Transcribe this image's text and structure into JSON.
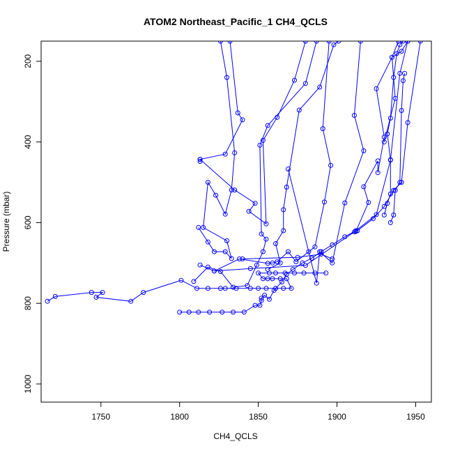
{
  "chart_data": {
    "type": "line",
    "title": "ATOM2 Northeast_Pacific_1 CH4_QCLS",
    "xlabel": "CH4_QCLS",
    "ylabel": "Pressure (mbar)",
    "xlim": [
      1712,
      1960
    ],
    "ylim": [
      1045,
      150
    ],
    "y_reversed": true,
    "x_ticks": [
      1750,
      1800,
      1850,
      1900,
      1950
    ],
    "y_ticks": [
      200,
      400,
      600,
      800,
      1000
    ],
    "grid": false,
    "legend": "none",
    "marker": "open-circle",
    "color": "#0000ff",
    "series": [
      {
        "values": [
          [
            1716,
            795
          ],
          [
            1721,
            783
          ],
          [
            1744,
            773
          ],
          [
            1751,
            773
          ],
          [
            1747,
            785
          ],
          [
            1769,
            795
          ],
          [
            1777,
            773
          ],
          [
            1801,
            743
          ],
          [
            1811,
            763
          ],
          [
            1818,
            763
          ],
          [
            1826,
            763
          ],
          [
            1829,
            763
          ],
          [
            1836,
            763
          ],
          [
            1845,
            763
          ],
          [
            1850,
            763
          ],
          [
            1855,
            763
          ],
          [
            1861,
            763
          ],
          [
            1866,
            763
          ],
          [
            1871,
            763
          ],
          [
            1868,
            739
          ],
          [
            1864,
            739
          ],
          [
            1859,
            739
          ],
          [
            1856,
            739
          ],
          [
            1853,
            739
          ],
          [
            1850,
            725
          ],
          [
            1857,
            725
          ],
          [
            1861,
            725
          ],
          [
            1867,
            725
          ],
          [
            1873,
            725
          ],
          [
            1879,
            725
          ],
          [
            1886,
            725
          ],
          [
            1893,
            725
          ]
        ]
      },
      {
        "values": [
          [
            1800,
            822
          ],
          [
            1806,
            822
          ],
          [
            1812,
            822
          ],
          [
            1819,
            822
          ],
          [
            1827,
            822
          ],
          [
            1834,
            822
          ],
          [
            1841,
            822
          ],
          [
            1848,
            805
          ],
          [
            1851,
            805
          ],
          [
            1852,
            793
          ],
          [
            1852,
            787
          ],
          [
            1854,
            780
          ],
          [
            1857,
            790
          ],
          [
            1860,
            768
          ],
          [
            1861,
            763
          ],
          [
            1865,
            747
          ],
          [
            1868,
            728
          ],
          [
            1872,
            716
          ],
          [
            1878,
            700
          ],
          [
            1884,
            688
          ],
          [
            1890,
            672
          ],
          [
            1897,
            655
          ],
          [
            1905,
            635
          ],
          [
            1912,
            620
          ],
          [
            1913,
            620
          ],
          [
            1923,
            590
          ],
          [
            1930,
            560
          ],
          [
            1936,
            520
          ],
          [
            1941,
            500
          ],
          [
            1945,
            352
          ],
          [
            1953,
            150
          ]
        ]
      },
      {
        "values": [
          [
            1812,
            612
          ],
          [
            1818,
            648
          ],
          [
            1822,
            672
          ],
          [
            1829,
            672
          ],
          [
            1833,
            689
          ],
          [
            1830,
            645
          ],
          [
            1815,
            612
          ],
          [
            1818,
            500
          ],
          [
            1823,
            532
          ],
          [
            1829,
            579
          ],
          [
            1833,
            519
          ],
          [
            1835,
            427
          ],
          [
            1830,
            240
          ],
          [
            1826,
            150
          ]
        ]
      },
      {
        "values": [
          [
            1813,
            448
          ],
          [
            1813,
            443
          ],
          [
            1829,
            430
          ],
          [
            1840,
            345
          ],
          [
            1837,
            328
          ],
          [
            1832,
            150
          ]
        ]
      },
      {
        "values": [
          [
            1813,
            443
          ],
          [
            1835,
            519
          ],
          [
            1848,
            552
          ],
          [
            1844,
            572
          ],
          [
            1855,
            603
          ],
          [
            1853,
            396
          ],
          [
            1862,
            339
          ],
          [
            1873,
            247
          ],
          [
            1880,
            150
          ]
        ]
      },
      {
        "values": [
          [
            1809,
            746
          ],
          [
            1818,
            710
          ],
          [
            1826,
            721
          ],
          [
            1834,
            760
          ],
          [
            1843,
            756
          ],
          [
            1849,
            705
          ],
          [
            1853,
            672
          ],
          [
            1855,
            641
          ],
          [
            1852,
            628
          ],
          [
            1851,
            408
          ],
          [
            1856,
            359
          ],
          [
            1880,
            255
          ],
          [
            1887,
            150
          ]
        ]
      },
      {
        "values": [
          [
            1813,
            705
          ],
          [
            1822,
            720
          ],
          [
            1838,
            690
          ],
          [
            1856,
            701
          ],
          [
            1859,
            700
          ],
          [
            1862,
            697
          ],
          [
            1869,
            672
          ],
          [
            1874,
            697
          ],
          [
            1886,
            660
          ],
          [
            1892,
            549
          ],
          [
            1896,
            458
          ],
          [
            1891,
            367
          ],
          [
            1895,
            150
          ]
        ]
      },
      {
        "values": [
          [
            1856,
            716
          ],
          [
            1864,
            700
          ],
          [
            1861,
            652
          ],
          [
            1866,
            620
          ],
          [
            1866,
            568
          ],
          [
            1868,
            512
          ],
          [
            1876,
            321
          ],
          [
            1889,
            264
          ],
          [
            1898,
            159
          ],
          [
            1901,
            150
          ]
        ]
      },
      {
        "values": [
          [
            1869,
            467
          ],
          [
            1882,
            672
          ],
          [
            1887,
            750
          ],
          [
            1889,
            672
          ],
          [
            1897,
            700
          ],
          [
            1905,
            551
          ],
          [
            1917,
            422
          ],
          [
            1911,
            334
          ],
          [
            1915,
            150
          ]
        ]
      },
      {
        "values": [
          [
            1912,
            622
          ],
          [
            1920,
            550
          ],
          [
            1917,
            511
          ],
          [
            1926,
            447
          ],
          [
            1926,
            476
          ],
          [
            1930,
            388
          ],
          [
            1925,
            268
          ],
          [
            1935,
            190
          ],
          [
            1939,
            150
          ]
        ]
      },
      {
        "values": [
          [
            1930,
            581
          ],
          [
            1932,
            552
          ],
          [
            1934,
            529
          ],
          [
            1934,
            444
          ],
          [
            1932,
            380
          ],
          [
            1934,
            341
          ],
          [
            1936,
            240
          ],
          [
            1938,
            181
          ],
          [
            1940,
            159
          ],
          [
            1942,
            150
          ]
        ]
      },
      {
        "values": [
          [
            1930,
            400
          ],
          [
            1937,
            292
          ],
          [
            1935,
            190
          ],
          [
            1941,
            175
          ],
          [
            1945,
            150
          ]
        ]
      },
      {
        "values": [
          [
            1943,
            230
          ],
          [
            1942,
            248
          ],
          [
            1941,
            322
          ],
          [
            1940,
            500
          ],
          [
            1937,
            520
          ],
          [
            1936,
            581
          ],
          [
            1934,
            600
          ]
        ]
      },
      {
        "values": [
          [
            1822,
            720
          ],
          [
            1845,
            714
          ],
          [
            1880,
            706
          ],
          [
            1911,
            623
          ],
          [
            1925,
            580
          ],
          [
            1934,
            445
          ],
          [
            1940,
            230
          ],
          [
            1945,
            150
          ]
        ]
      },
      {
        "values": [
          [
            1840,
            690
          ],
          [
            1875,
            686
          ],
          [
            1890,
            678
          ],
          [
            1897,
            690
          ]
        ]
      }
    ]
  }
}
